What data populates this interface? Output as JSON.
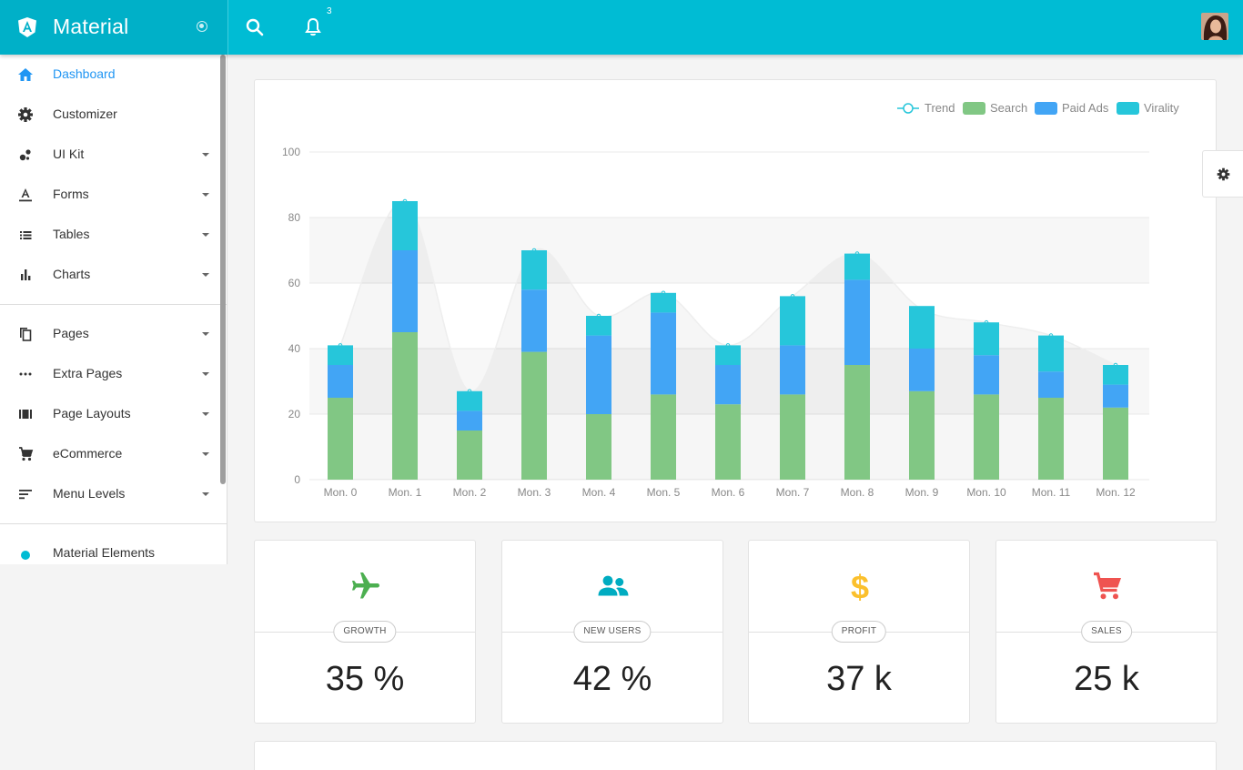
{
  "brand": {
    "title": "Material"
  },
  "header": {
    "notification_count": "3"
  },
  "sidebar": {
    "items": [
      {
        "label": "Dashboard",
        "icon": "home-icon",
        "active": true,
        "has_caret": false
      },
      {
        "label": "Customizer",
        "icon": "gear-icon",
        "active": false,
        "has_caret": false
      },
      {
        "label": "UI Kit",
        "icon": "bubbles-icon",
        "active": false,
        "has_caret": true
      },
      {
        "label": "Forms",
        "icon": "text-format-icon",
        "active": false,
        "has_caret": true
      },
      {
        "label": "Tables",
        "icon": "list-icon",
        "active": false,
        "has_caret": true
      },
      {
        "label": "Charts",
        "icon": "bar-chart-icon",
        "active": false,
        "has_caret": true
      },
      {
        "label": "Pages",
        "icon": "copy-icon",
        "active": false,
        "has_caret": true
      },
      {
        "label": "Extra Pages",
        "icon": "more-horiz-icon",
        "active": false,
        "has_caret": true
      },
      {
        "label": "Page Layouts",
        "icon": "view-array-icon",
        "active": false,
        "has_caret": true
      },
      {
        "label": "eCommerce",
        "icon": "cart-icon",
        "active": false,
        "has_caret": true
      },
      {
        "label": "Menu Levels",
        "icon": "sort-icon",
        "active": false,
        "has_caret": true
      },
      {
        "label": "Material Elements",
        "icon": "dot-icon",
        "active": false,
        "has_caret": false
      }
    ]
  },
  "chart_data": {
    "type": "bar",
    "stacked": true,
    "categories": [
      "Mon. 0",
      "Mon. 1",
      "Mon. 2",
      "Mon. 3",
      "Mon. 4",
      "Mon. 5",
      "Mon. 6",
      "Mon. 7",
      "Mon. 8",
      "Mon. 9",
      "Mon. 10",
      "Mon. 11",
      "Mon. 12"
    ],
    "series": [
      {
        "name": "Search",
        "color": "#81c784",
        "values": [
          25,
          45,
          15,
          39,
          20,
          26,
          23,
          26,
          35,
          27,
          26,
          25,
          22
        ]
      },
      {
        "name": "Paid Ads",
        "color": "#42a5f5",
        "values": [
          10,
          25,
          6,
          19,
          24,
          25,
          12,
          15,
          26,
          13,
          12,
          8,
          7
        ]
      },
      {
        "name": "Virality",
        "color": "#26c6da",
        "values": [
          6,
          15,
          6,
          12,
          6,
          6,
          6,
          15,
          8,
          13,
          10,
          11,
          6
        ]
      }
    ],
    "trend": {
      "name": "Trend",
      "color": "#26c6da",
      "values": [
        41,
        85,
        27,
        70,
        50,
        57,
        41,
        56,
        69,
        52,
        48,
        44,
        35
      ]
    },
    "y_ticks": [
      0,
      20,
      40,
      60,
      80,
      100
    ],
    "ylim": [
      0,
      100
    ],
    "grid": true,
    "legend_position": "top-right"
  },
  "stats": [
    {
      "label": "GROWTH",
      "value": "35 %",
      "icon": "airplane-icon",
      "color": "#4caf50"
    },
    {
      "label": "NEW USERS",
      "value": "42 %",
      "icon": "people-icon",
      "color": "#00acc1"
    },
    {
      "label": "PROFIT",
      "value": "37 k",
      "icon": "dollar-icon",
      "color": "#fbc02d"
    },
    {
      "label": "SALES",
      "value": "25 k",
      "icon": "cart-icon",
      "color": "#ef5350"
    }
  ]
}
